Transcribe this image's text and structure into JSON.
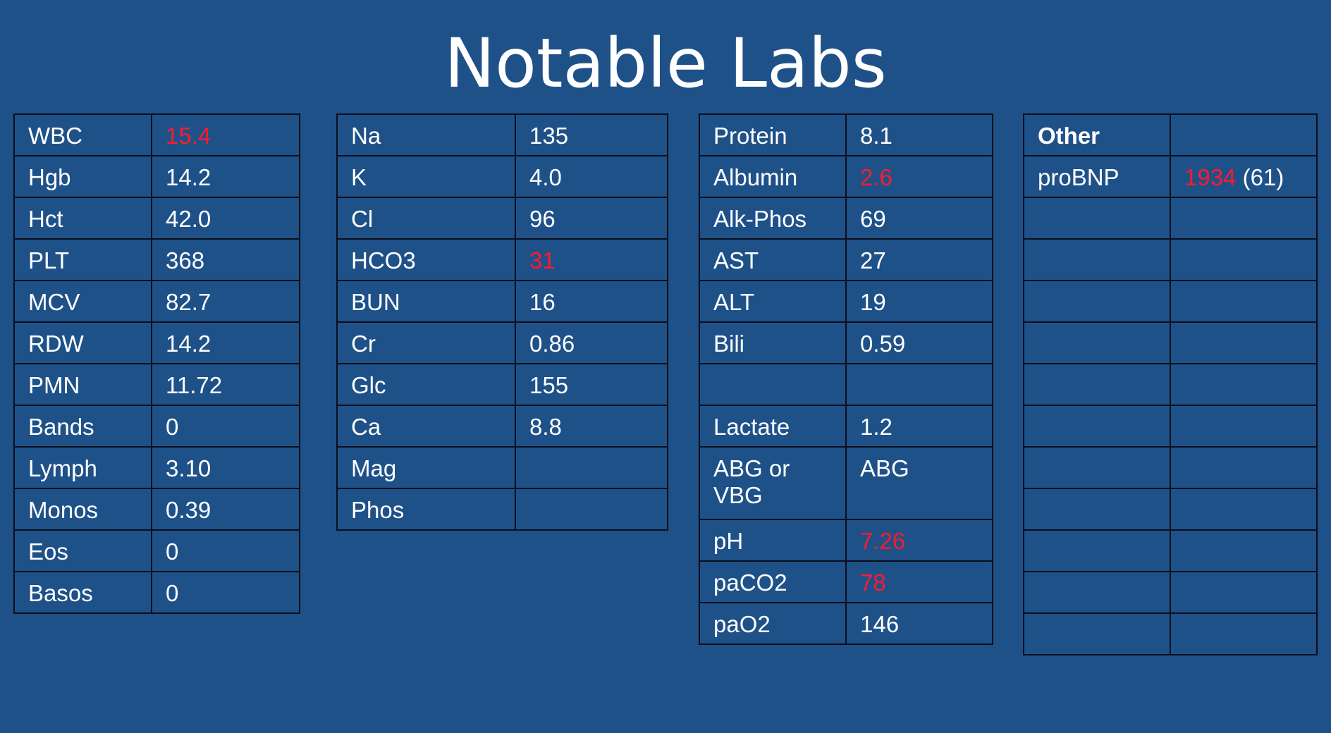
{
  "title": "Notable Labs",
  "colors": {
    "background": "#1f5189",
    "abnormal": "#ff1a2e",
    "text": "#ffffff",
    "border": "#0b0f1c"
  },
  "tables": [
    {
      "name": "cbc",
      "rows": [
        {
          "label": "WBC",
          "value": "15.4",
          "abnormal": true
        },
        {
          "label": "Hgb",
          "value": "14.2"
        },
        {
          "label": "Hct",
          "value": "42.0"
        },
        {
          "label": "PLT",
          "value": "368"
        },
        {
          "label": "MCV",
          "value": "82.7"
        },
        {
          "label": "RDW",
          "value": "14.2"
        },
        {
          "label": "PMN",
          "value": "11.72"
        },
        {
          "label": "Bands",
          "value": "0"
        },
        {
          "label": "Lymph",
          "value": "3.10"
        },
        {
          "label": "Monos",
          "value": "0.39"
        },
        {
          "label": "Eos",
          "value": "0"
        },
        {
          "label": "Basos",
          "value": "0"
        }
      ]
    },
    {
      "name": "bmp",
      "rows": [
        {
          "label": "Na",
          "value": "135"
        },
        {
          "label": "K",
          "value": "4.0"
        },
        {
          "label": "Cl",
          "value": "96"
        },
        {
          "label": "HCO3",
          "value": "31",
          "abnormal": true
        },
        {
          "label": "BUN",
          "value": "16"
        },
        {
          "label": "Cr",
          "value": "0.86"
        },
        {
          "label": "Glc",
          "value": "155"
        },
        {
          "label": "Ca",
          "value": "8.8"
        },
        {
          "label": "Mag",
          "value": ""
        },
        {
          "label": "Phos",
          "value": ""
        }
      ]
    },
    {
      "name": "lft-gas",
      "rows": [
        {
          "label": "Protein",
          "value": "8.1"
        },
        {
          "label": "Albumin",
          "value": "2.6",
          "abnormal": true
        },
        {
          "label": "Alk-Phos",
          "value": "69"
        },
        {
          "label": "AST",
          "value": "27"
        },
        {
          "label": "ALT",
          "value": "19"
        },
        {
          "label": "Bili",
          "value": "0.59"
        },
        {
          "label": "",
          "value": ""
        },
        {
          "label": "Lactate",
          "value": "1.2"
        },
        {
          "label": "ABG or VBG",
          "value": "ABG",
          "tall": true
        },
        {
          "label": "pH",
          "value": "7.26",
          "abnormal": true
        },
        {
          "label": "paCO2",
          "value": "78",
          "abnormal": true
        },
        {
          "label": "paO2",
          "value": "146"
        }
      ]
    },
    {
      "name": "other",
      "rows": [
        {
          "label": "Other",
          "value": "",
          "header": true
        },
        {
          "label": "proBNP",
          "value": "1934",
          "abnormal": true,
          "suffix": " (61)"
        },
        {
          "label": "",
          "value": ""
        },
        {
          "label": "",
          "value": ""
        },
        {
          "label": "",
          "value": ""
        },
        {
          "label": "",
          "value": ""
        },
        {
          "label": "",
          "value": ""
        },
        {
          "label": "",
          "value": ""
        },
        {
          "label": "",
          "value": ""
        },
        {
          "label": "",
          "value": ""
        },
        {
          "label": "",
          "value": ""
        },
        {
          "label": "",
          "value": ""
        },
        {
          "label": "",
          "value": ""
        }
      ]
    }
  ]
}
